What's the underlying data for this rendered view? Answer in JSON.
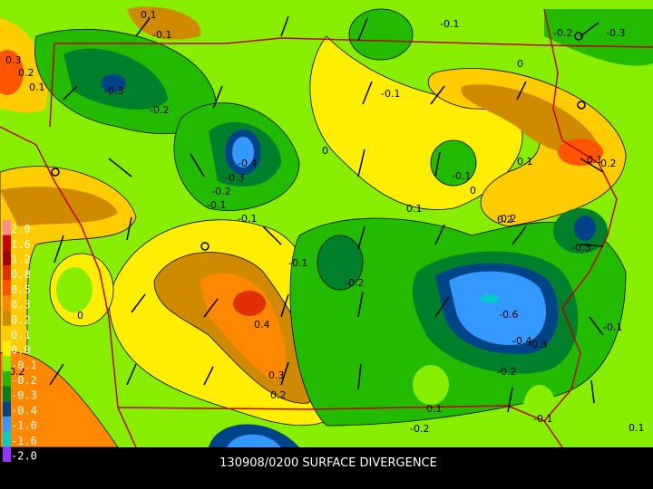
{
  "title": "130908/0200 SURFACE DIVERGENCE",
  "legend": [
    "2.0",
    "1.6",
    "1.2",
    "0.8",
    "0.5",
    "0.3",
    "0.2",
    "0.1",
    "0.0",
    "-0.1",
    "-0.2",
    "-0.3",
    "-0.4",
    "-1.0",
    "-1.6",
    "-2.0"
  ],
  "legend_colors": [
    "#ff9090",
    "#c80000",
    "#a00000",
    "#e03000",
    "#ff5500",
    "#ff8800",
    "#d08a00",
    "#ffcc00",
    "#ffee00",
    "#88ee00",
    "#22bb00",
    "#00802a",
    "#004488",
    "#3399ff",
    "#00cccc",
    "#9933ff"
  ],
  "contour_labels": [
    "-0.3",
    "-0.2",
    "-0.4",
    "-0.3",
    "-0.2",
    "-0.1",
    "-0.1",
    "0",
    "-0.1",
    "0.1",
    "-0.1",
    "0",
    "-0.2",
    "-0.1",
    "0.1",
    "-0.2",
    "-0.3",
    "-0.6",
    "-0.4",
    "-0.3",
    "-0.1",
    "0.4",
    "0.3",
    "0.2",
    "0",
    "-0.1",
    "0.2",
    "0.1",
    "0.2",
    "0.3",
    "0.2",
    "0.1",
    "-0.2",
    "-0.1",
    "-0.2",
    "0.1",
    "-0.1",
    "0.1",
    "0",
    "-0.2",
    "-0.3",
    "0.1",
    "0.2"
  ]
}
